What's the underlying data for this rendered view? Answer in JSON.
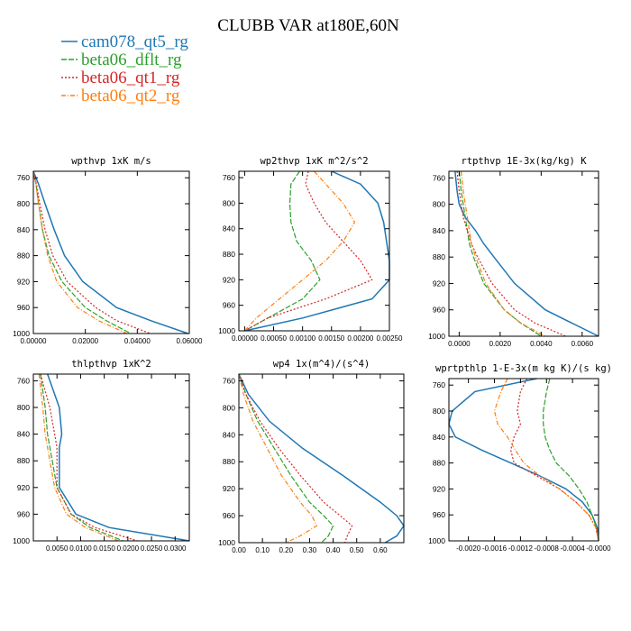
{
  "figure": {
    "title": "CLUBB VAR at180E,60N"
  },
  "legend": [
    {
      "label": "cam078_qt5_rg",
      "color": "#1f77b4"
    },
    {
      "label": "beta06_dflt_rg",
      "color": "#2ca02c"
    },
    {
      "label": "beta06_qt1_rg",
      "color": "#d62728"
    },
    {
      "label": "beta06_qt2_rg",
      "color": "#ff7f0e"
    }
  ],
  "chart_data": [
    {
      "type": "line",
      "title": "wpthvp  1xK m/s",
      "xlim": [
        0.0,
        0.06
      ],
      "ylim": [
        750,
        1000
      ],
      "y_inverted": true,
      "xticks": [
        "0.00000",
        "0.02000",
        "0.04000",
        "0.06000"
      ],
      "yticks": [
        "760",
        "800",
        "840",
        "880",
        "920",
        "960",
        "1000"
      ],
      "y": [
        750,
        770,
        800,
        840,
        880,
        920,
        960,
        980,
        1000
      ],
      "series": [
        {
          "name": "cam078_qt5_rg",
          "x": [
            0.0,
            0.002,
            0.0045,
            0.008,
            0.012,
            0.019,
            0.032,
            0.045,
            0.0595
          ]
        },
        {
          "name": "beta06_dflt_rg",
          "x": [
            0.0,
            0.001,
            0.002,
            0.0035,
            0.006,
            0.011,
            0.02,
            0.028,
            0.0375
          ]
        },
        {
          "name": "beta06_qt1_rg",
          "x": [
            0.0,
            0.0012,
            0.0025,
            0.0045,
            0.0075,
            0.013,
            0.024,
            0.032,
            0.045
          ]
        },
        {
          "name": "beta06_qt2_rg",
          "x": [
            0.0,
            0.001,
            0.002,
            0.0035,
            0.0055,
            0.009,
            0.017,
            0.025,
            0.036
          ]
        }
      ]
    },
    {
      "type": "line",
      "title": "wp2thvp  1xK m^2/s^2",
      "xlim": [
        -0.0001,
        0.0025
      ],
      "ylim": [
        750,
        1000
      ],
      "y_inverted": true,
      "xticks": [
        "0.00000",
        "0.00050",
        "0.00100",
        "0.00150",
        "0.00200",
        "0.00250"
      ],
      "yticks": [
        "760",
        "800",
        "840",
        "880",
        "920",
        "960",
        "1000"
      ],
      "y": [
        750,
        770,
        800,
        830,
        860,
        890,
        920,
        950,
        980,
        1000
      ],
      "series": [
        {
          "name": "cam078_qt5_rg",
          "x": [
            0.0015,
            0.002,
            0.0023,
            0.0024,
            0.00245,
            0.0025,
            0.0025,
            0.0022,
            0.001,
            0.0
          ]
        },
        {
          "name": "beta06_dflt_rg",
          "x": [
            0.00095,
            0.0008,
            0.00078,
            0.0008,
            0.0009,
            0.00115,
            0.0013,
            0.001,
            0.0004,
            0.0
          ]
        },
        {
          "name": "beta06_qt1_rg",
          "x": [
            0.0011,
            0.00105,
            0.0012,
            0.0014,
            0.0017,
            0.002,
            0.0022,
            0.0014,
            0.0004,
            0.0
          ]
        },
        {
          "name": "beta06_qt2_rg",
          "x": [
            0.0012,
            0.0014,
            0.0017,
            0.0019,
            0.0017,
            0.0014,
            0.001,
            0.0006,
            0.0002,
            0.0
          ]
        }
      ]
    },
    {
      "type": "line",
      "title": "rtpthvp  1E-3x(kg/kg) K",
      "xlim": [
        -0.0005,
        0.0068
      ],
      "ylim": [
        750,
        1000
      ],
      "y_inverted": true,
      "xticks": [
        "0.0000",
        "0.0020",
        "0.0040",
        "0.0060"
      ],
      "yticks": [
        "760",
        "800",
        "840",
        "880",
        "920",
        "960",
        "1000"
      ],
      "y": [
        750,
        780,
        800,
        820,
        840,
        860,
        880,
        920,
        960,
        980,
        1000
      ],
      "series": [
        {
          "name": "cam078_qt5_rg",
          "x": [
            -0.0002,
            -0.0001,
            0.0,
            0.0003,
            0.0008,
            0.0012,
            0.0017,
            0.0027,
            0.0042,
            0.0055,
            0.0068
          ]
        },
        {
          "name": "beta06_dflt_rg",
          "x": [
            0.0,
            0.0001,
            0.0002,
            0.0003,
            0.0004,
            0.0005,
            0.0007,
            0.0012,
            0.0022,
            0.003,
            0.004
          ]
        },
        {
          "name": "beta06_qt1_rg",
          "x": [
            -0.0001,
            0.0,
            0.0001,
            0.0002,
            0.0004,
            0.0006,
            0.0009,
            0.0016,
            0.0027,
            0.0037,
            0.0052
          ]
        },
        {
          "name": "beta06_qt2_rg",
          "x": [
            0.0001,
            0.0002,
            0.0003,
            0.0004,
            0.0005,
            0.0006,
            0.0008,
            0.0013,
            0.0022,
            0.003,
            0.0042
          ]
        }
      ]
    },
    {
      "type": "line",
      "title": "thlpthvp  1xK^2",
      "xlim": [
        0.0,
        0.033
      ],
      "ylim": [
        750,
        1000
      ],
      "y_inverted": true,
      "xticks": [
        "0.0050",
        "0.0100",
        "0.0150",
        "0.0200",
        "0.0250",
        "0.0300"
      ],
      "yticks": [
        "760",
        "800",
        "840",
        "880",
        "920",
        "960",
        "1000"
      ],
      "y": [
        750,
        800,
        840,
        860,
        880,
        920,
        960,
        980,
        1000
      ],
      "series": [
        {
          "name": "cam078_qt5_rg",
          "x": [
            0.003,
            0.0055,
            0.006,
            0.0055,
            0.0055,
            0.0055,
            0.009,
            0.016,
            0.033
          ]
        },
        {
          "name": "beta06_dflt_rg",
          "x": [
            0.0015,
            0.0025,
            0.003,
            0.0035,
            0.004,
            0.005,
            0.008,
            0.012,
            0.019
          ]
        },
        {
          "name": "beta06_qt1_rg",
          "x": [
            0.0015,
            0.0035,
            0.0045,
            0.005,
            0.005,
            0.005,
            0.008,
            0.013,
            0.022
          ]
        },
        {
          "name": "beta06_qt2_rg",
          "x": [
            0.0012,
            0.002,
            0.0025,
            0.003,
            0.0035,
            0.0045,
            0.007,
            0.011,
            0.018
          ]
        }
      ]
    },
    {
      "type": "line",
      "title": "wp4  1x(m^4)/(s^4)",
      "xlim": [
        0.0,
        0.7
      ],
      "ylim": [
        750,
        1000
      ],
      "y_inverted": true,
      "xticks": [
        "0.00",
        "0.10",
        "0.20",
        "0.30",
        "0.40",
        "0.50",
        "0.60"
      ],
      "yticks": [
        "760",
        "800",
        "840",
        "880",
        "920",
        "960",
        "1000"
      ],
      "y": [
        750,
        780,
        820,
        860,
        900,
        940,
        960,
        975,
        990,
        1000
      ],
      "series": [
        {
          "name": "cam078_qt5_rg",
          "x": [
            0.0,
            0.04,
            0.13,
            0.27,
            0.44,
            0.6,
            0.67,
            0.7,
            0.67,
            0.62
          ]
        },
        {
          "name": "beta06_dflt_rg",
          "x": [
            0.0,
            0.03,
            0.08,
            0.15,
            0.22,
            0.3,
            0.36,
            0.4,
            0.38,
            0.35
          ]
        },
        {
          "name": "beta06_qt1_rg",
          "x": [
            0.0,
            0.03,
            0.09,
            0.17,
            0.26,
            0.36,
            0.43,
            0.48,
            0.46,
            0.45
          ]
        },
        {
          "name": "beta06_qt2_rg",
          "x": [
            0.0,
            0.02,
            0.06,
            0.12,
            0.18,
            0.26,
            0.31,
            0.33,
            0.26,
            0.2
          ]
        }
      ]
    },
    {
      "type": "line",
      "title": "wprtpthlp  1-E-3x(m kg K)/(s kg)",
      "xlim": [
        -0.0023,
        0.0
      ],
      "ylim": [
        750,
        1000
      ],
      "y_inverted": true,
      "xticks": [
        "-0.0020",
        "-0.0016",
        "-0.0012",
        "-0.0008",
        "-0.0004",
        "-0.0000"
      ],
      "yticks": [
        "760",
        "800",
        "840",
        "880",
        "920",
        "960",
        "1000"
      ],
      "y": [
        750,
        770,
        800,
        820,
        840,
        860,
        880,
        900,
        920,
        940,
        960,
        980,
        1000
      ],
      "series": [
        {
          "name": "cam078_qt5_rg",
          "x": [
            -0.00095,
            -0.0019,
            -0.00225,
            -0.0023,
            -0.0022,
            -0.0018,
            -0.00135,
            -0.0009,
            -0.0005,
            -0.00025,
            -0.0001,
            -2e-05,
            0.0
          ]
        },
        {
          "name": "beta06_dflt_rg",
          "x": [
            -0.00075,
            -0.0008,
            -0.00085,
            -0.00085,
            -0.00082,
            -0.00075,
            -0.00065,
            -0.00045,
            -0.0003,
            -0.00018,
            -0.0001,
            -3e-05,
            0.0
          ]
        },
        {
          "name": "beta06_qt1_rg",
          "x": [
            -0.0011,
            -0.0012,
            -0.00125,
            -0.0012,
            -0.0013,
            -0.00135,
            -0.0013,
            -0.00095,
            -0.0006,
            -0.00035,
            -0.00015,
            -4e-05,
            0.0
          ]
        },
        {
          "name": "beta06_qt2_rg",
          "x": [
            -0.0014,
            -0.0015,
            -0.0016,
            -0.00155,
            -0.0014,
            -0.00128,
            -0.00115,
            -0.0009,
            -0.0006,
            -0.00035,
            -0.00015,
            -4e-05,
            0.0
          ]
        }
      ]
    }
  ]
}
